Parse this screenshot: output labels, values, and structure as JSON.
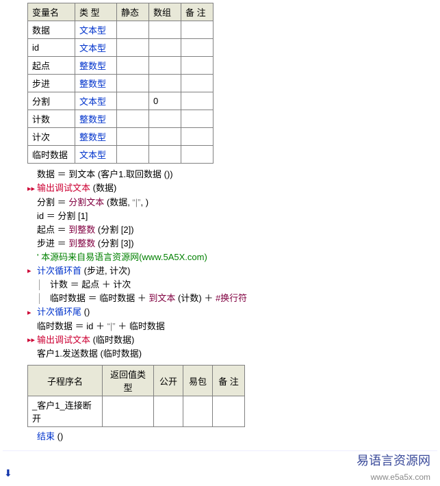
{
  "var_table": {
    "headers": [
      "变量名",
      "类 型",
      "静态",
      "数组",
      "备 注"
    ],
    "rows": [
      {
        "name": "数据",
        "type": "文本型",
        "static": "",
        "array": "",
        "note": ""
      },
      {
        "name": "id",
        "type": "文本型",
        "static": "",
        "array": "",
        "note": ""
      },
      {
        "name": "起点",
        "type": "整数型",
        "static": "",
        "array": "",
        "note": ""
      },
      {
        "name": "步进",
        "type": "整数型",
        "static": "",
        "array": "",
        "note": ""
      },
      {
        "name": "分割",
        "type": "文本型",
        "static": "",
        "array": "0",
        "note": ""
      },
      {
        "name": "计数",
        "type": "整数型",
        "static": "",
        "array": "",
        "note": ""
      },
      {
        "name": "计次",
        "type": "整数型",
        "static": "",
        "array": "",
        "note": ""
      },
      {
        "name": "临时数据",
        "type": "文本型",
        "static": "",
        "array": "",
        "note": ""
      }
    ]
  },
  "code": {
    "l1": "数据 ＝ 到文本 (客户1.取回数据 ())",
    "l2a": "输出调试文本",
    "l2b": " (数据)",
    "l3a": "分割 ＝ ",
    "l3b": "分割文本",
    "l3c": " (数据, ",
    "l3d": "“|”",
    "l3e": ", )",
    "l4": "id ＝ 分割 [1]",
    "l5a": "起点 ＝ ",
    "l5b": "到整数",
    "l5c": " (分割 [2])",
    "l6a": "步进 ＝ ",
    "l6b": "到整数",
    "l6c": " (分割 [3])",
    "l7": "' 本源码来自易语言资源网(www.5A5X.com)",
    "l8a": "计次循环首",
    "l8b": " (步进, 计次)",
    "l9": "计数 ＝ 起点 ＋ 计次",
    "l10a": "临时数据 ＝ 临时数据 ＋ ",
    "l10b": "到文本",
    "l10c": " (计数) ＋ ",
    "l10d": "#换行符",
    "l11a": "计次循环尾",
    "l11b": " ()",
    "l12a": "临时数据 ＝ id ＋ ",
    "l12b": "“|”",
    "l12c": " ＋ 临时数据",
    "l13a": "输出调试文本",
    "l13b": " (临时数据)",
    "l14": "客户1.发送数据 (临时数据)",
    "end": "结束",
    "end_b": " ()"
  },
  "sub_table": {
    "headers": [
      "子程序名",
      "返回值类型",
      "公开",
      "易包",
      "备 注"
    ],
    "rows": [
      {
        "name": "_客户1_连接断开",
        "ret": "",
        "pub": "",
        "pkg": "",
        "note": ""
      }
    ]
  },
  "logo": {
    "title": "易语言资源网",
    "url": "www.e5a5x.com"
  }
}
